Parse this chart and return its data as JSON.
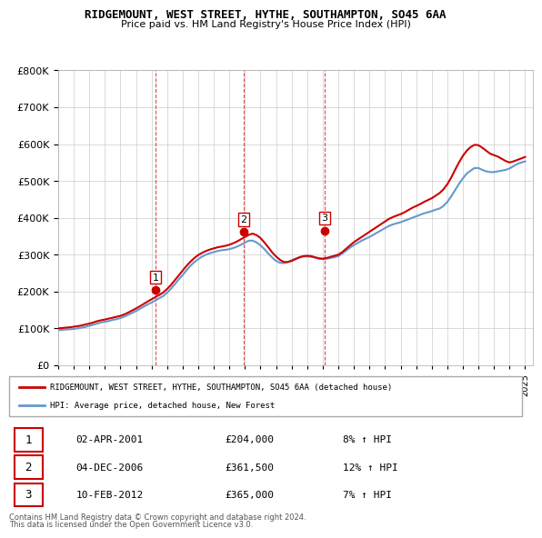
{
  "title": "RIDGEMOUNT, WEST STREET, HYTHE, SOUTHAMPTON, SO45 6AA",
  "subtitle": "Price paid vs. HM Land Registry's House Price Index (HPI)",
  "legend_line1": "RIDGEMOUNT, WEST STREET, HYTHE, SOUTHAMPTON, SO45 6AA (detached house)",
  "legend_line2": "HPI: Average price, detached house, New Forest",
  "sales": [
    {
      "label": "1",
      "date": "02-APR-2001",
      "price": 204000,
      "year": 2001.25
    },
    {
      "label": "2",
      "date": "04-DEC-2006",
      "price": 361500,
      "year": 2006.92
    },
    {
      "label": "3",
      "date": "10-FEB-2012",
      "price": 365000,
      "year": 2012.12
    }
  ],
  "sale_annotations": [
    {
      "num": "1",
      "date": "02-APR-2001",
      "price": "£204,000",
      "pct": "8% ↑ HPI"
    },
    {
      "num": "2",
      "date": "04-DEC-2006",
      "price": "£361,500",
      "pct": "12% ↑ HPI"
    },
    {
      "num": "3",
      "date": "10-FEB-2012",
      "price": "£365,000",
      "pct": "7% ↑ HPI"
    }
  ],
  "footer1": "Contains HM Land Registry data © Crown copyright and database right 2024.",
  "footer2": "This data is licensed under the Open Government Licence v3.0.",
  "red_color": "#cc0000",
  "blue_color": "#6699cc",
  "background_color": "#ffffff",
  "ylim": [
    0,
    800000
  ],
  "xlim_start": 1995,
  "xlim_end": 2025.5,
  "hpi_years": [
    1995.0,
    1995.25,
    1995.5,
    1995.75,
    1996.0,
    1996.25,
    1996.5,
    1996.75,
    1997.0,
    1997.25,
    1997.5,
    1997.75,
    1998.0,
    1998.25,
    1998.5,
    1998.75,
    1999.0,
    1999.25,
    1999.5,
    1999.75,
    2000.0,
    2000.25,
    2000.5,
    2000.75,
    2001.0,
    2001.25,
    2001.5,
    2001.75,
    2002.0,
    2002.25,
    2002.5,
    2002.75,
    2003.0,
    2003.25,
    2003.5,
    2003.75,
    2004.0,
    2004.25,
    2004.5,
    2004.75,
    2005.0,
    2005.25,
    2005.5,
    2005.75,
    2006.0,
    2006.25,
    2006.5,
    2006.75,
    2007.0,
    2007.25,
    2007.5,
    2007.75,
    2008.0,
    2008.25,
    2008.5,
    2008.75,
    2009.0,
    2009.25,
    2009.5,
    2009.75,
    2010.0,
    2010.25,
    2010.5,
    2010.75,
    2011.0,
    2011.25,
    2011.5,
    2011.75,
    2012.0,
    2012.25,
    2012.5,
    2012.75,
    2013.0,
    2013.25,
    2013.5,
    2013.75,
    2014.0,
    2014.25,
    2014.5,
    2014.75,
    2015.0,
    2015.25,
    2015.5,
    2015.75,
    2016.0,
    2016.25,
    2016.5,
    2016.75,
    2017.0,
    2017.25,
    2017.5,
    2017.75,
    2018.0,
    2018.25,
    2018.5,
    2018.75,
    2019.0,
    2019.25,
    2019.5,
    2019.75,
    2020.0,
    2020.25,
    2020.5,
    2020.75,
    2021.0,
    2021.25,
    2021.5,
    2021.75,
    2022.0,
    2022.25,
    2022.5,
    2022.75,
    2023.0,
    2023.25,
    2023.5,
    2023.75,
    2024.0,
    2024.25,
    2024.5,
    2024.75,
    2025.0
  ],
  "hpi_values": [
    95000,
    96000,
    97000,
    97500,
    98500,
    100000,
    102000,
    104000,
    107000,
    110000,
    113000,
    116000,
    118000,
    120000,
    123000,
    125000,
    128000,
    132000,
    137000,
    142000,
    147000,
    153000,
    159000,
    165000,
    170000,
    176000,
    182000,
    188000,
    197000,
    208000,
    220000,
    233000,
    245000,
    258000,
    270000,
    280000,
    288000,
    295000,
    300000,
    304000,
    307000,
    310000,
    312000,
    313000,
    315000,
    318000,
    322000,
    327000,
    333000,
    338000,
    338000,
    333000,
    325000,
    315000,
    303000,
    292000,
    283000,
    278000,
    277000,
    280000,
    285000,
    289000,
    292000,
    295000,
    295000,
    294000,
    292000,
    289000,
    288000,
    289000,
    291000,
    293000,
    296000,
    303000,
    311000,
    319000,
    326000,
    332000,
    338000,
    343000,
    348000,
    354000,
    360000,
    366000,
    372000,
    378000,
    382000,
    385000,
    388000,
    392000,
    396000,
    400000,
    404000,
    408000,
    412000,
    415000,
    418000,
    422000,
    425000,
    432000,
    443000,
    458000,
    475000,
    492000,
    507000,
    520000,
    528000,
    535000,
    535000,
    530000,
    526000,
    524000,
    524000,
    526000,
    528000,
    530000,
    534000,
    540000,
    546000,
    550000,
    553000
  ],
  "red_years": [
    1995.0,
    1995.25,
    1995.5,
    1995.75,
    1996.0,
    1996.25,
    1996.5,
    1996.75,
    1997.0,
    1997.25,
    1997.5,
    1997.75,
    1998.0,
    1998.25,
    1998.5,
    1998.75,
    1999.0,
    1999.25,
    1999.5,
    1999.75,
    2000.0,
    2000.25,
    2000.5,
    2000.75,
    2001.0,
    2001.25,
    2001.5,
    2001.75,
    2002.0,
    2002.25,
    2002.5,
    2002.75,
    2003.0,
    2003.25,
    2003.5,
    2003.75,
    2004.0,
    2004.25,
    2004.5,
    2004.75,
    2005.0,
    2005.25,
    2005.5,
    2005.75,
    2006.0,
    2006.25,
    2006.5,
    2006.75,
    2007.0,
    2007.25,
    2007.5,
    2007.75,
    2008.0,
    2008.25,
    2008.5,
    2008.75,
    2009.0,
    2009.25,
    2009.5,
    2009.75,
    2010.0,
    2010.25,
    2010.5,
    2010.75,
    2011.0,
    2011.25,
    2011.5,
    2011.75,
    2012.0,
    2012.25,
    2012.5,
    2012.75,
    2013.0,
    2013.25,
    2013.5,
    2013.75,
    2014.0,
    2014.25,
    2014.5,
    2014.75,
    2015.0,
    2015.25,
    2015.5,
    2015.75,
    2016.0,
    2016.25,
    2016.5,
    2016.75,
    2017.0,
    2017.25,
    2017.5,
    2017.75,
    2018.0,
    2018.25,
    2018.5,
    2018.75,
    2019.0,
    2019.25,
    2019.5,
    2019.75,
    2020.0,
    2020.25,
    2020.5,
    2020.75,
    2021.0,
    2021.25,
    2021.5,
    2021.75,
    2022.0,
    2022.25,
    2022.5,
    2022.75,
    2023.0,
    2023.25,
    2023.5,
    2023.75,
    2024.0,
    2024.25,
    2024.5,
    2024.75,
    2025.0
  ],
  "red_values": [
    100000,
    101000,
    102000,
    103000,
    104500,
    106000,
    108000,
    110500,
    113000,
    116000,
    119500,
    122000,
    124000,
    126500,
    129000,
    131500,
    134000,
    138000,
    143000,
    148500,
    154000,
    160000,
    166500,
    173000,
    179000,
    185000,
    191000,
    197500,
    207000,
    218000,
    231000,
    244000,
    257000,
    270000,
    281000,
    291000,
    299000,
    305000,
    310000,
    314000,
    317000,
    320000,
    322000,
    324000,
    327000,
    331000,
    336000,
    342000,
    348000,
    354000,
    357000,
    353000,
    345000,
    333000,
    320000,
    306000,
    295000,
    286000,
    280000,
    280000,
    283000,
    288000,
    293000,
    296000,
    297000,
    296000,
    293000,
    290000,
    289000,
    291000,
    294000,
    297000,
    300000,
    307000,
    316000,
    325000,
    334000,
    341000,
    348000,
    355000,
    362000,
    369000,
    376000,
    383000,
    390000,
    397000,
    402000,
    406000,
    410000,
    415000,
    421000,
    427000,
    432000,
    437000,
    443000,
    448000,
    453000,
    460000,
    467000,
    477000,
    491000,
    509000,
    530000,
    550000,
    568000,
    582000,
    592000,
    598000,
    597000,
    590000,
    582000,
    574000,
    570000,
    566000,
    560000,
    554000,
    550000,
    553000,
    557000,
    561000,
    565000
  ]
}
